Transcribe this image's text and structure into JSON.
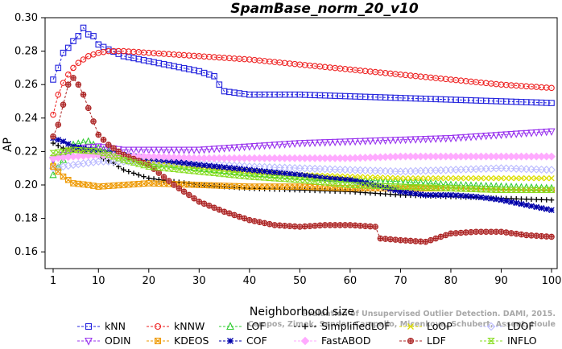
{
  "chart_data": {
    "type": "line",
    "title": "SpamBase_norm_20_v10",
    "xlabel": "Neighborhood size",
    "ylabel": "AP",
    "xlim": [
      1,
      100
    ],
    "ylim": [
      0.15,
      0.3
    ],
    "xticks": [
      1,
      10,
      20,
      30,
      40,
      50,
      60,
      70,
      80,
      90,
      100
    ],
    "yticks": [
      0.16,
      0.18,
      0.2,
      0.22,
      0.24,
      0.26,
      0.28,
      0.3
    ],
    "ytick_labels": [
      "0.16",
      "0.18",
      "0.20",
      "0.22",
      "0.24",
      "0.26",
      "0.28",
      "0.30"
    ],
    "grid": false,
    "legend_position": "bottom",
    "series": [
      {
        "name": "kNN",
        "color": "#2222dd",
        "marker": "square",
        "points": [
          [
            1,
            0.263
          ],
          [
            2,
            0.27
          ],
          [
            3,
            0.279
          ],
          [
            4,
            0.282
          ],
          [
            5,
            0.286
          ],
          [
            6,
            0.289
          ],
          [
            7,
            0.294
          ],
          [
            8,
            0.29
          ],
          [
            9,
            0.289
          ],
          [
            10,
            0.284
          ],
          [
            12,
            0.281
          ],
          [
            15,
            0.277
          ],
          [
            20,
            0.274
          ],
          [
            25,
            0.271
          ],
          [
            30,
            0.268
          ],
          [
            33,
            0.265
          ],
          [
            34,
            0.26
          ],
          [
            35,
            0.256
          ],
          [
            40,
            0.254
          ],
          [
            50,
            0.254
          ],
          [
            60,
            0.253
          ],
          [
            70,
            0.252
          ],
          [
            80,
            0.251
          ],
          [
            90,
            0.25
          ],
          [
            100,
            0.249
          ]
        ]
      },
      {
        "name": "kNNW",
        "color": "#ee2222",
        "marker": "circle",
        "points": [
          [
            1,
            0.242
          ],
          [
            2,
            0.254
          ],
          [
            3,
            0.261
          ],
          [
            4,
            0.266
          ],
          [
            5,
            0.27
          ],
          [
            6,
            0.273
          ],
          [
            7,
            0.275
          ],
          [
            8,
            0.277
          ],
          [
            10,
            0.279
          ],
          [
            12,
            0.28
          ],
          [
            15,
            0.28
          ],
          [
            20,
            0.279
          ],
          [
            30,
            0.277
          ],
          [
            40,
            0.275
          ],
          [
            50,
            0.272
          ],
          [
            60,
            0.269
          ],
          [
            70,
            0.266
          ],
          [
            80,
            0.263
          ],
          [
            90,
            0.26
          ],
          [
            100,
            0.258
          ]
        ]
      },
      {
        "name": "LOF",
        "color": "#33cc33",
        "marker": "triangle",
        "points": [
          [
            1,
            0.206
          ],
          [
            3,
            0.215
          ],
          [
            5,
            0.224
          ],
          [
            8,
            0.226
          ],
          [
            10,
            0.222
          ],
          [
            15,
            0.217
          ],
          [
            20,
            0.213
          ],
          [
            25,
            0.212
          ],
          [
            30,
            0.21
          ],
          [
            40,
            0.207
          ],
          [
            50,
            0.205
          ],
          [
            60,
            0.203
          ],
          [
            70,
            0.202
          ],
          [
            80,
            0.2
          ],
          [
            90,
            0.199
          ],
          [
            100,
            0.198
          ]
        ]
      },
      {
        "name": "SimplifiedLOF",
        "color": "#000000",
        "marker": "plus",
        "points": [
          [
            1,
            0.225
          ],
          [
            3,
            0.222
          ],
          [
            5,
            0.221
          ],
          [
            8,
            0.219
          ],
          [
            10,
            0.217
          ],
          [
            13,
            0.213
          ],
          [
            15,
            0.209
          ],
          [
            20,
            0.204
          ],
          [
            25,
            0.202
          ],
          [
            30,
            0.2
          ],
          [
            40,
            0.198
          ],
          [
            50,
            0.197
          ],
          [
            60,
            0.196
          ],
          [
            70,
            0.194
          ],
          [
            80,
            0.193
          ],
          [
            90,
            0.192
          ],
          [
            100,
            0.191
          ]
        ]
      },
      {
        "name": "LoOP",
        "color": "#dddd00",
        "marker": "x",
        "points": [
          [
            1,
            0.214
          ],
          [
            3,
            0.22
          ],
          [
            5,
            0.222
          ],
          [
            10,
            0.22
          ],
          [
            15,
            0.216
          ],
          [
            20,
            0.214
          ],
          [
            30,
            0.211
          ],
          [
            40,
            0.208
          ],
          [
            50,
            0.206
          ],
          [
            60,
            0.205
          ],
          [
            70,
            0.204
          ],
          [
            80,
            0.204
          ],
          [
            90,
            0.204
          ],
          [
            100,
            0.204
          ]
        ]
      },
      {
        "name": "LDOF",
        "color": "#bbbbff",
        "marker": "diamond",
        "points": [
          [
            1,
            0.21
          ],
          [
            5,
            0.212
          ],
          [
            10,
            0.214
          ],
          [
            20,
            0.214
          ],
          [
            30,
            0.213
          ],
          [
            40,
            0.211
          ],
          [
            50,
            0.21
          ],
          [
            60,
            0.209
          ],
          [
            70,
            0.208
          ],
          [
            80,
            0.209
          ],
          [
            90,
            0.21
          ],
          [
            100,
            0.209
          ]
        ]
      },
      {
        "name": "ODIN",
        "color": "#9933ee",
        "marker": "triangle-down",
        "points": [
          [
            1,
            0.215
          ],
          [
            3,
            0.218
          ],
          [
            6,
            0.222
          ],
          [
            10,
            0.223
          ],
          [
            15,
            0.221
          ],
          [
            20,
            0.221
          ],
          [
            30,
            0.221
          ],
          [
            40,
            0.223
          ],
          [
            50,
            0.225
          ],
          [
            60,
            0.226
          ],
          [
            70,
            0.227
          ],
          [
            80,
            0.228
          ],
          [
            90,
            0.23
          ],
          [
            100,
            0.232
          ]
        ]
      },
      {
        "name": "KDEOS",
        "color": "#ee9900",
        "marker": "square-x",
        "points": [
          [
            1,
            0.211
          ],
          [
            3,
            0.205
          ],
          [
            5,
            0.201
          ],
          [
            8,
            0.2
          ],
          [
            10,
            0.199
          ],
          [
            15,
            0.2
          ],
          [
            20,
            0.201
          ],
          [
            30,
            0.2
          ],
          [
            40,
            0.199
          ],
          [
            50,
            0.199
          ],
          [
            60,
            0.198
          ],
          [
            70,
            0.198
          ],
          [
            80,
            0.198
          ],
          [
            90,
            0.197
          ],
          [
            100,
            0.197
          ]
        ]
      },
      {
        "name": "COF",
        "color": "#0000aa",
        "marker": "star",
        "points": [
          [
            1,
            0.228
          ],
          [
            3,
            0.226
          ],
          [
            5,
            0.223
          ],
          [
            10,
            0.22
          ],
          [
            15,
            0.218
          ],
          [
            20,
            0.216
          ],
          [
            30,
            0.212
          ],
          [
            40,
            0.209
          ],
          [
            50,
            0.206
          ],
          [
            55,
            0.204
          ],
          [
            60,
            0.203
          ],
          [
            65,
            0.2
          ],
          [
            70,
            0.196
          ],
          [
            75,
            0.194
          ],
          [
            80,
            0.194
          ],
          [
            85,
            0.193
          ],
          [
            90,
            0.191
          ],
          [
            95,
            0.188
          ],
          [
            100,
            0.185
          ]
        ]
      },
      {
        "name": "FastABOD",
        "color": "#ffaaff",
        "marker": "diamond-filled",
        "points": [
          [
            1,
            0.216
          ],
          [
            5,
            0.217
          ],
          [
            10,
            0.218
          ],
          [
            20,
            0.217
          ],
          [
            30,
            0.216
          ],
          [
            40,
            0.216
          ],
          [
            50,
            0.216
          ],
          [
            60,
            0.216
          ],
          [
            70,
            0.217
          ],
          [
            80,
            0.217
          ],
          [
            90,
            0.217
          ],
          [
            100,
            0.217
          ]
        ]
      },
      {
        "name": "LDF",
        "color": "#aa2222",
        "marker": "circle-plus",
        "points": [
          [
            1,
            0.229
          ],
          [
            2,
            0.236
          ],
          [
            3,
            0.248
          ],
          [
            4,
            0.26
          ],
          [
            5,
            0.264
          ],
          [
            6,
            0.26
          ],
          [
            7,
            0.254
          ],
          [
            8,
            0.246
          ],
          [
            9,
            0.238
          ],
          [
            10,
            0.23
          ],
          [
            12,
            0.224
          ],
          [
            15,
            0.218
          ],
          [
            20,
            0.212
          ],
          [
            25,
            0.2
          ],
          [
            30,
            0.19
          ],
          [
            35,
            0.184
          ],
          [
            40,
            0.179
          ],
          [
            45,
            0.176
          ],
          [
            50,
            0.175
          ],
          [
            55,
            0.176
          ],
          [
            60,
            0.176
          ],
          [
            65,
            0.175
          ],
          [
            66,
            0.168
          ],
          [
            70,
            0.167
          ],
          [
            75,
            0.166
          ],
          [
            80,
            0.171
          ],
          [
            85,
            0.172
          ],
          [
            90,
            0.172
          ],
          [
            95,
            0.17
          ],
          [
            100,
            0.169
          ]
        ]
      },
      {
        "name": "INFLO",
        "color": "#88dd22",
        "marker": "hourglass",
        "points": [
          [
            1,
            0.219
          ],
          [
            3,
            0.22
          ],
          [
            5,
            0.221
          ],
          [
            10,
            0.22
          ],
          [
            15,
            0.215
          ],
          [
            20,
            0.211
          ],
          [
            30,
            0.208
          ],
          [
            40,
            0.205
          ],
          [
            50,
            0.203
          ],
          [
            60,
            0.2
          ],
          [
            70,
            0.199
          ],
          [
            80,
            0.198
          ],
          [
            90,
            0.197
          ],
          [
            100,
            0.197
          ]
        ]
      }
    ],
    "legend_rows": [
      [
        "kNN",
        "kNNW",
        "LOF",
        "SimplifiedLOF",
        "LoOP",
        "LDOF"
      ],
      [
        "ODIN",
        "KDEOS",
        "COF",
        "FastABOD",
        "LDF",
        "INFLO"
      ]
    ],
    "watermark": [
      "Evaluation of Unsupervised Outlier Detection. DAMI, 2015.",
      "Campos, Zimek, Sander, Campello, Micenkova, Schubert, Assent, Houle"
    ]
  }
}
